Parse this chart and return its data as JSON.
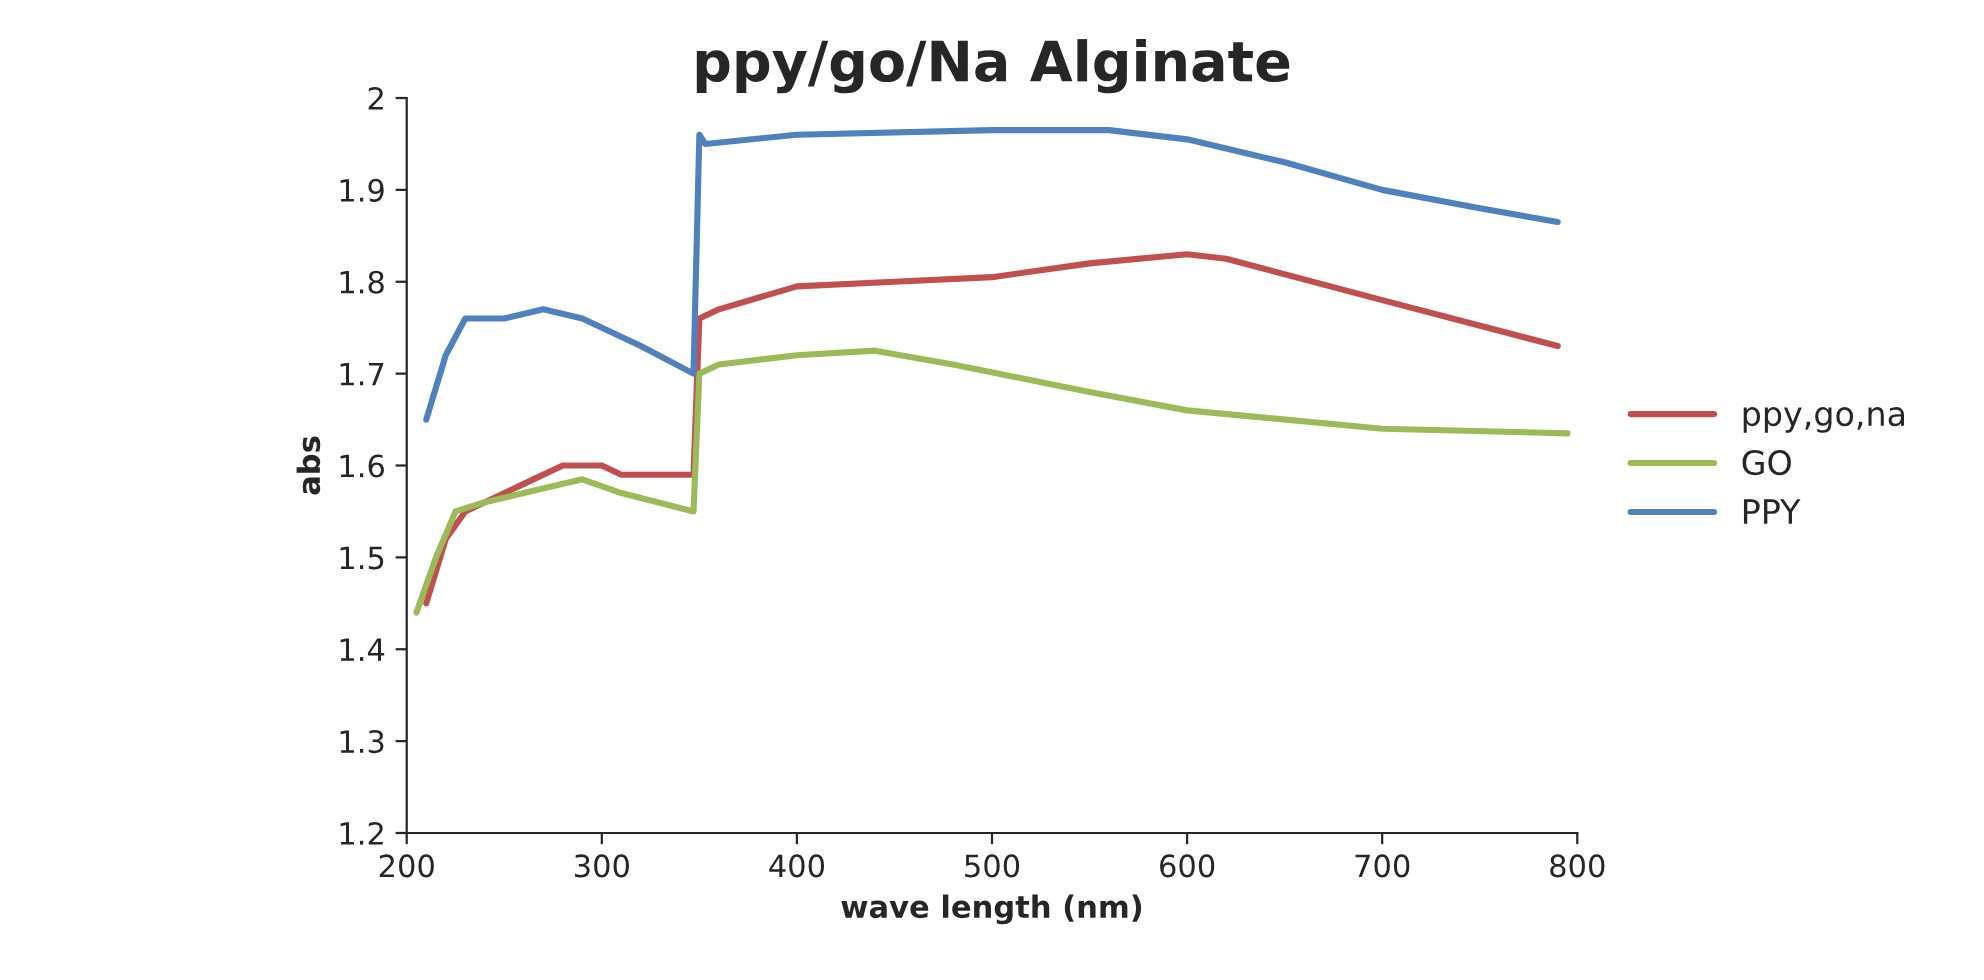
{
  "chart_data": {
    "type": "line",
    "title": "ppy/go/Na Alginate",
    "xlabel": "wave length (nm)",
    "ylabel": "abs",
    "xlim": [
      200,
      800
    ],
    "xticks": [
      200,
      300,
      400,
      500,
      600,
      700,
      800
    ],
    "ylim": [
      1.2,
      2
    ],
    "yticks": [
      1.2,
      1.3,
      1.4,
      1.5,
      1.6,
      1.7,
      1.8,
      1.9,
      2
    ],
    "grid": false,
    "legend": "right",
    "marker": "none",
    "line_style": "solid",
    "series": [
      {
        "name": "ppy,go,na",
        "color": "#c0504d",
        "x": [
          210,
          220,
          230,
          260,
          280,
          300,
          310,
          347,
          350,
          360,
          400,
          450,
          500,
          550,
          600,
          620,
          700,
          790
        ],
        "values": [
          1.45,
          1.52,
          1.55,
          1.58,
          1.6,
          1.6,
          1.59,
          1.59,
          1.76,
          1.77,
          1.795,
          1.8,
          1.805,
          1.82,
          1.83,
          1.825,
          1.78,
          1.73
        ]
      },
      {
        "name": "GO",
        "color": "#9bbb59",
        "x": [
          205,
          215,
          225,
          240,
          260,
          290,
          310,
          347,
          350,
          360,
          400,
          440,
          480,
          550,
          600,
          700,
          795
        ],
        "values": [
          1.44,
          1.5,
          1.55,
          1.56,
          1.57,
          1.585,
          1.57,
          1.55,
          1.7,
          1.71,
          1.72,
          1.725,
          1.71,
          1.68,
          1.66,
          1.64,
          1.635
        ]
      },
      {
        "name": "PPY",
        "color": "#4f81bd",
        "x": [
          210,
          220,
          230,
          250,
          270,
          290,
          320,
          347,
          350,
          353,
          400,
          500,
          560,
          600,
          650,
          700,
          750,
          790
        ],
        "values": [
          1.65,
          1.72,
          1.76,
          1.76,
          1.77,
          1.76,
          1.73,
          1.7,
          1.96,
          1.95,
          1.96,
          1.965,
          1.965,
          1.955,
          1.93,
          1.9,
          1.88,
          1.865
        ]
      }
    ]
  }
}
